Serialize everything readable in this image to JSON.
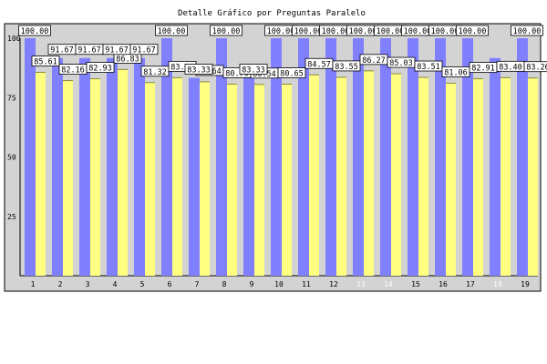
{
  "chart_data": {
    "type": "bar",
    "title": "Detalle Gráfico por Preguntas Paralelo",
    "xlabel": "",
    "ylabel": "",
    "ylim": [
      0,
      100
    ],
    "y_ticks": [
      "25",
      "50",
      "75",
      "100"
    ],
    "y_tick_values": [
      25,
      50,
      75,
      100
    ],
    "grid": false,
    "categories": [
      "1",
      "2",
      "3",
      "4",
      "5",
      "6",
      "7",
      "8",
      "9",
      "10",
      "11",
      "12",
      "13",
      "14",
      "15",
      "16",
      "17",
      "18",
      "19"
    ],
    "series": [
      {
        "color": "#8080ff",
        "values": [
          100.0,
          91.67,
          91.67,
          91.67,
          91.67,
          100.0,
          83.33,
          100.0,
          83.33,
          100.0,
          100.0,
          100.0,
          100.0,
          100.0,
          100.0,
          100.0,
          100.0,
          91.67,
          100.0
        ],
        "labels": [
          "100.00",
          "91.67",
          "91.67",
          "91.67",
          "91.67",
          "100.00",
          "83.33",
          "100.00",
          "83.33",
          "100.00",
          "100.00",
          "100.00",
          "100.00",
          "100.00",
          "100.00",
          "100.00",
          "100.00",
          "",
          "100.00"
        ]
      },
      {
        "color": "#ffff80",
        "values": [
          85.61,
          82.16,
          82.93,
          86.83,
          81.32,
          83.38,
          81.64,
          80.7,
          80.54,
          80.65,
          84.57,
          83.55,
          86.27,
          85.03,
          83.51,
          81.06,
          82.91,
          83.4,
          83.26
        ],
        "labels": [
          "85.61",
          "82.16",
          "82.93",
          "86.83",
          "81.32",
          "83.38",
          "81.64",
          "80.70",
          "80.54",
          "80.65",
          "84.57",
          "83.55",
          "86.27",
          "85.03",
          "83.51",
          "81.06",
          "82.91",
          "83.40",
          "83.26"
        ]
      }
    ],
    "white_tick_categories": [
      "13",
      "14",
      "18"
    ],
    "colors": {
      "panel": "#d3d3d3",
      "frame": "#000000",
      "label_bg": "#ffffff"
    }
  }
}
